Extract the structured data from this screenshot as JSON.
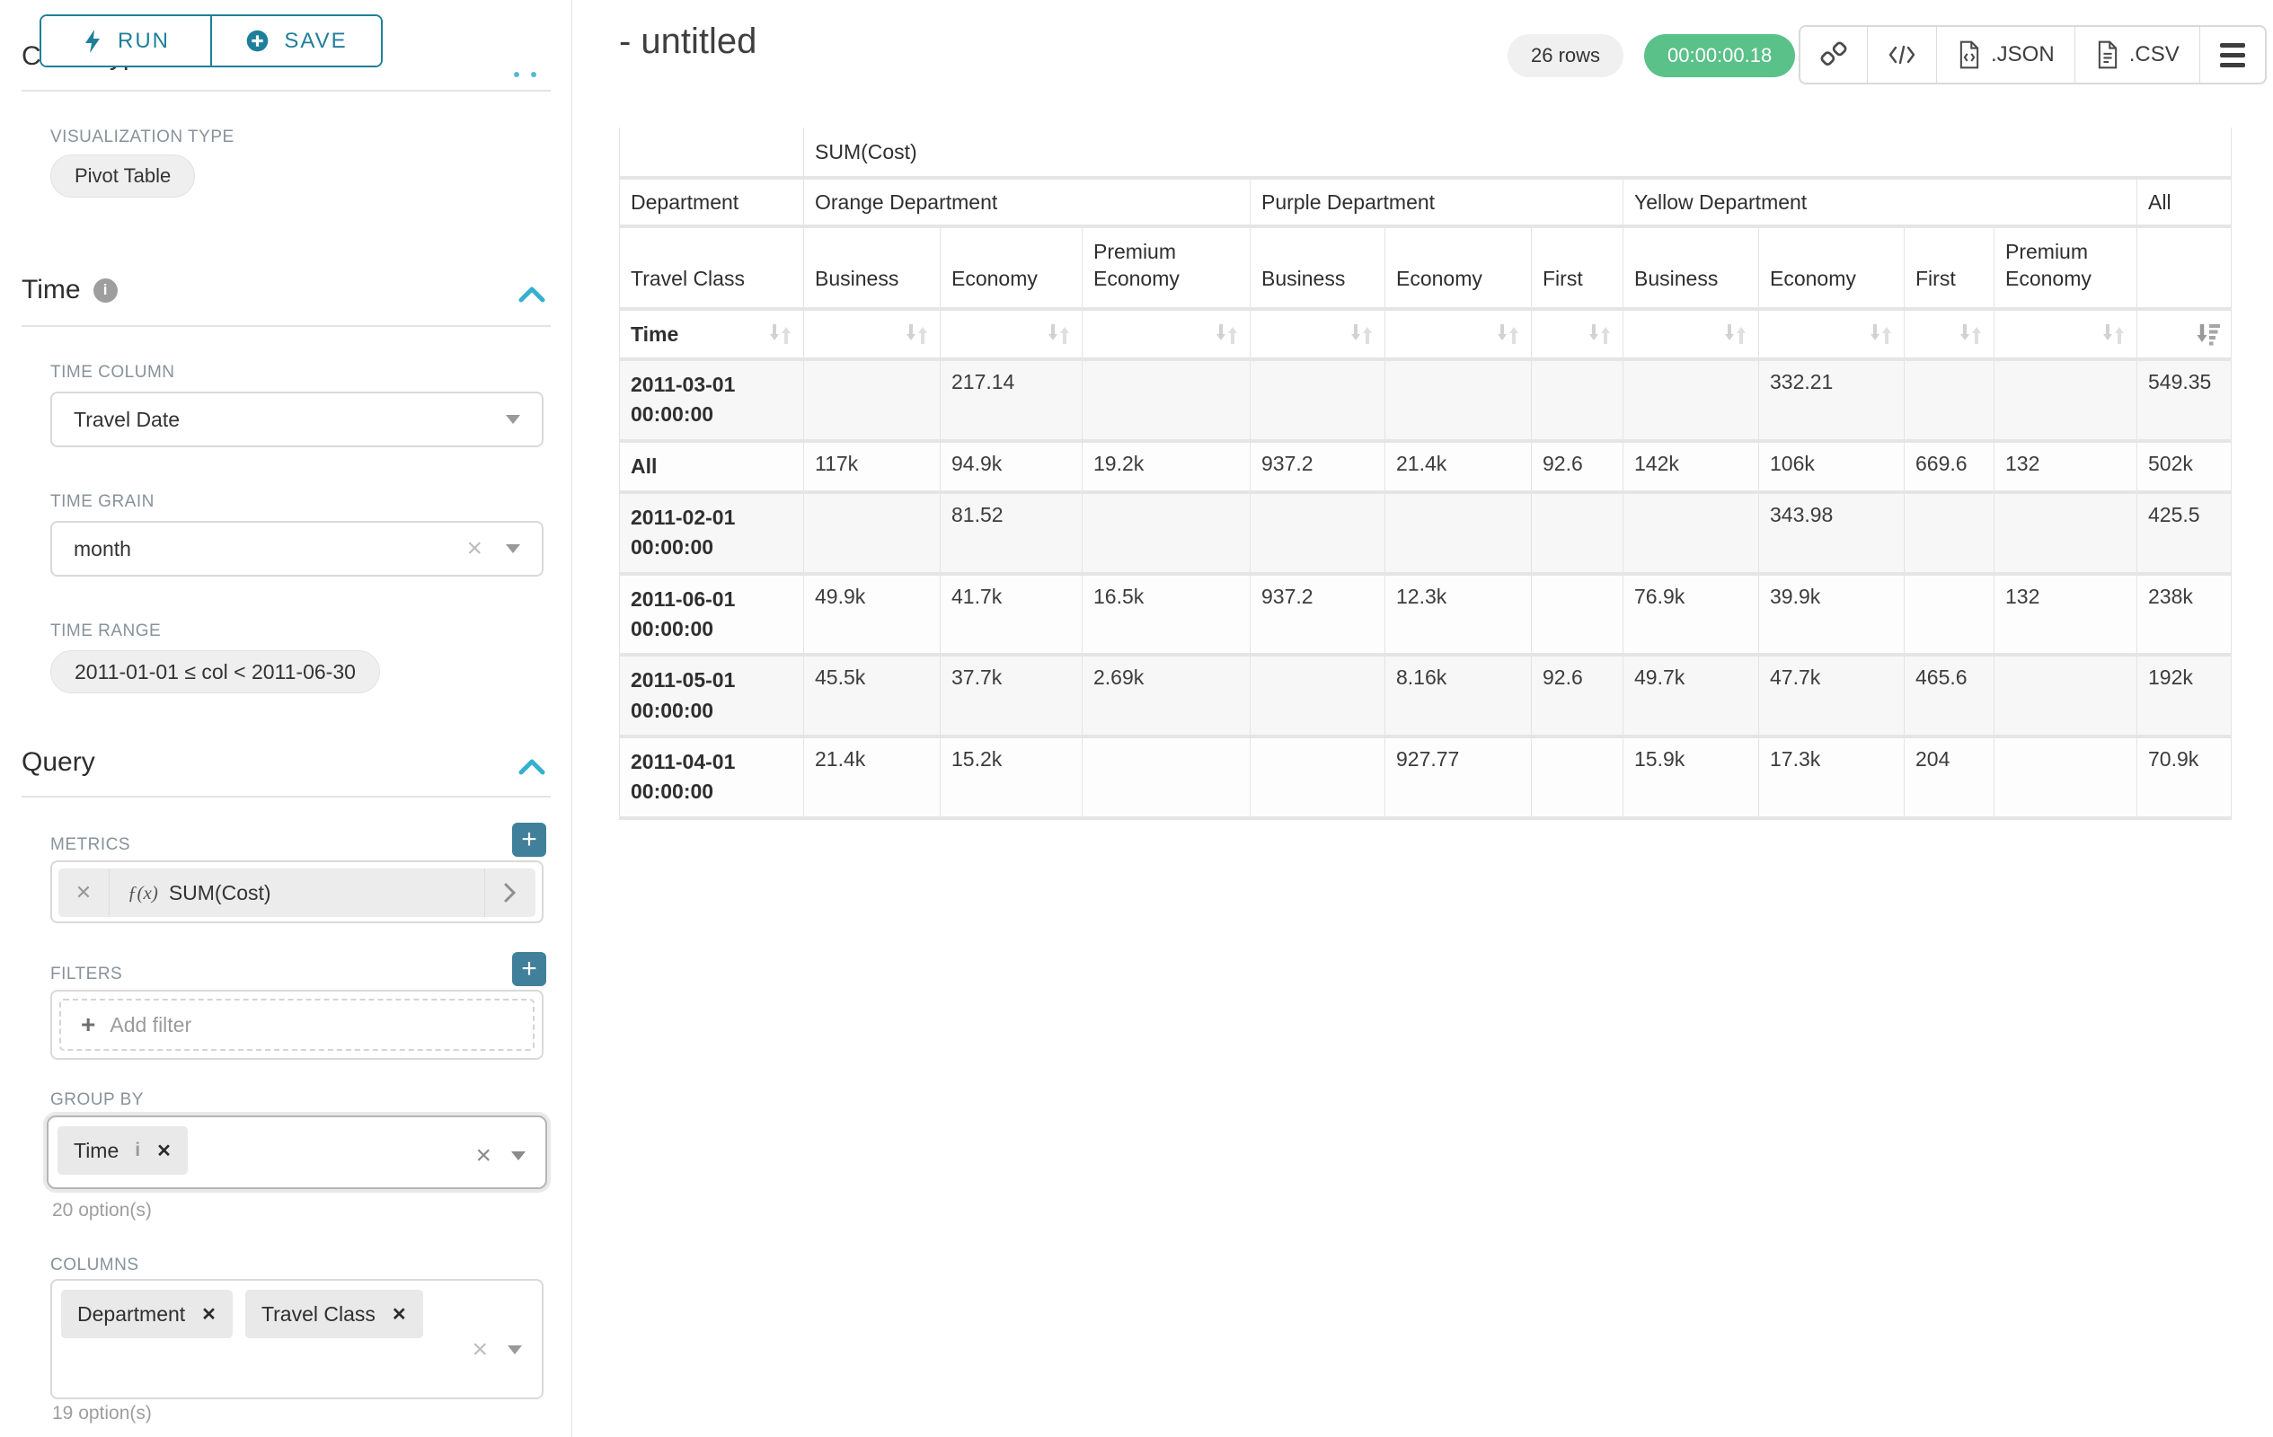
{
  "toolbar": {
    "run": "RUN",
    "save": "SAVE"
  },
  "left_panel": {
    "scrolled_heading": "Chart Type",
    "viz_type_label": "VISUALIZATION TYPE",
    "viz_type_value": "Pivot Table",
    "time_section": {
      "title": "Time",
      "time_column_label": "TIME COLUMN",
      "time_column_value": "Travel Date",
      "time_grain_label": "TIME GRAIN",
      "time_grain_value": "month",
      "time_range_label": "TIME RANGE",
      "time_range_value": "2011-01-01 ≤ col < 2011-06-30"
    },
    "query_section": {
      "title": "Query",
      "metrics_label": "METRICS",
      "metric_prefix": "ƒ(x)",
      "metric_value": "SUM(Cost)",
      "filters_label": "FILTERS",
      "add_filter_label": "Add filter",
      "group_by_label": "GROUP BY",
      "group_by_values": [
        {
          "label": "Time",
          "has_info": true
        }
      ],
      "group_by_hint": "20 option(s)",
      "columns_label": "COLUMNS",
      "columns_values": [
        {
          "label": "Department",
          "has_info": false
        },
        {
          "label": "Travel Class",
          "has_info": false
        }
      ],
      "columns_hint": "19 option(s)"
    }
  },
  "header": {
    "title": "- untitled",
    "row_count": "26 rows",
    "timer": "00:00:00.18",
    "export_json": ".JSON",
    "export_csv": ".CSV"
  },
  "pivot": {
    "metric_header": "SUM(Cost)",
    "department_label": "Department",
    "travel_class_label": "Travel Class",
    "time_label": "Time",
    "column_groups": [
      {
        "name": "Orange Department",
        "classes": [
          "Business",
          "Economy",
          "Premium Economy"
        ]
      },
      {
        "name": "Purple Department",
        "classes": [
          "Business",
          "Economy",
          "First"
        ]
      },
      {
        "name": "Yellow Department",
        "classes": [
          "Business",
          "Economy",
          "First",
          "Premium Economy"
        ]
      },
      {
        "name": "All",
        "classes": [
          ""
        ]
      }
    ],
    "sorted_column": "All",
    "rows": [
      {
        "label": "2011-03-01 00:00:00",
        "values": [
          "",
          "217.14",
          "",
          "",
          "",
          "",
          "",
          "332.21",
          "",
          "",
          "549.35"
        ]
      },
      {
        "label": "All",
        "values": [
          "117k",
          "94.9k",
          "19.2k",
          "937.2",
          "21.4k",
          "92.6",
          "142k",
          "106k",
          "669.6",
          "132",
          "502k"
        ]
      },
      {
        "label": "2011-02-01 00:00:00",
        "values": [
          "",
          "81.52",
          "",
          "",
          "",
          "",
          "",
          "343.98",
          "",
          "",
          "425.5"
        ]
      },
      {
        "label": "2011-06-01 00:00:00",
        "values": [
          "49.9k",
          "41.7k",
          "16.5k",
          "937.2",
          "12.3k",
          "",
          "76.9k",
          "39.9k",
          "",
          "132",
          "238k"
        ]
      },
      {
        "label": "2011-05-01 00:00:00",
        "values": [
          "45.5k",
          "37.7k",
          "2.69k",
          "",
          "8.16k",
          "92.6",
          "49.7k",
          "47.7k",
          "465.6",
          "",
          "192k"
        ]
      },
      {
        "label": "2011-04-01 00:00:00",
        "values": [
          "21.4k",
          "15.2k",
          "",
          "",
          "927.77",
          "",
          "15.9k",
          "17.3k",
          "204",
          "",
          "70.9k"
        ]
      }
    ]
  },
  "colors": {
    "primary": "#1f7f9b",
    "accent": "#36b0d0",
    "success": "#5ac189",
    "add_button": "#40809a"
  }
}
